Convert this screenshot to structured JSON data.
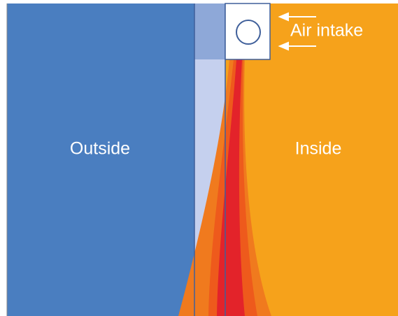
{
  "labels": {
    "outside": "Outside",
    "inside": "Inside",
    "air_intake": "Air intake"
  }
}
